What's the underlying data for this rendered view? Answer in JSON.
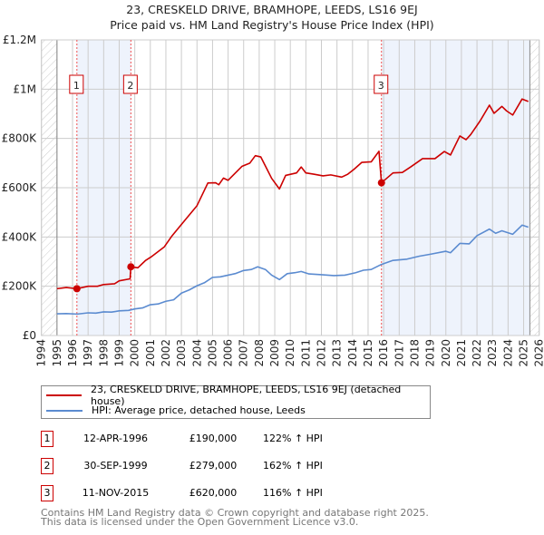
{
  "title": "23, CRESKELD DRIVE, BRAMHOPE, LEEDS, LS16 9EJ",
  "subtitle": "Price paid vs. HM Land Registry's House Price Index (HPI)",
  "colors": {
    "property": "#cc0000",
    "hpi": "#5b8bd0",
    "shade": "#eef3fc",
    "grid": "#cccccc"
  },
  "chart_data": {
    "type": "line",
    "xlim": [
      1994,
      2026
    ],
    "ylim": [
      0,
      1200000
    ],
    "x_ticks": [
      "1994",
      "1995",
      "1996",
      "1997",
      "1998",
      "1999",
      "2000",
      "2001",
      "2002",
      "2003",
      "2004",
      "2005",
      "2006",
      "2007",
      "2008",
      "2009",
      "2010",
      "2011",
      "2012",
      "2013",
      "2014",
      "2015",
      "2016",
      "2017",
      "2018",
      "2019",
      "2020",
      "2021",
      "2022",
      "2023",
      "2024",
      "2025",
      "2026"
    ],
    "y_ticks": [
      {
        "v": 0,
        "label": "£0"
      },
      {
        "v": 200000,
        "label": "£200K"
      },
      {
        "v": 400000,
        "label": "£400K"
      },
      {
        "v": 600000,
        "label": "£600K"
      },
      {
        "v": 800000,
        "label": "£800K"
      },
      {
        "v": 1000000,
        "label": "£1M"
      },
      {
        "v": 1200000,
        "label": "£1.2M"
      }
    ],
    "grid": true,
    "data_end": 2025.4,
    "series": [
      {
        "name": "23, CRESKELD DRIVE, BRAMHOPE, LEEDS, LS16 9EJ (detached house)",
        "color": "#cc0000",
        "points": [
          [
            1995,
            190000
          ],
          [
            1995.6,
            195000
          ],
          [
            1996.28,
            190000
          ],
          [
            1997,
            200000
          ],
          [
            1997.6,
            200000
          ],
          [
            1998,
            207000
          ],
          [
            1998.7,
            210000
          ],
          [
            1999,
            222000
          ],
          [
            1999.7,
            230000
          ],
          [
            1999.75,
            279000
          ],
          [
            2000.2,
            275000
          ],
          [
            2000.7,
            305000
          ],
          [
            2001.05,
            319000
          ],
          [
            2001.9,
            360000
          ],
          [
            2002.4,
            405000
          ],
          [
            2003.2,
            466000
          ],
          [
            2004,
            527000
          ],
          [
            2004.7,
            619000
          ],
          [
            2005.2,
            620000
          ],
          [
            2005.4,
            612000
          ],
          [
            2005.7,
            639000
          ],
          [
            2006,
            630000
          ],
          [
            2006.9,
            687000
          ],
          [
            2007.4,
            700000
          ],
          [
            2007.75,
            730000
          ],
          [
            2008.1,
            725000
          ],
          [
            2008.4,
            688000
          ],
          [
            2008.8,
            638000
          ],
          [
            2009.3,
            595000
          ],
          [
            2009.7,
            650000
          ],
          [
            2010.4,
            660000
          ],
          [
            2010.7,
            684000
          ],
          [
            2011,
            660000
          ],
          [
            2011.5,
            655000
          ],
          [
            2012.1,
            648000
          ],
          [
            2012.6,
            652000
          ],
          [
            2013.3,
            643000
          ],
          [
            2013.7,
            655000
          ],
          [
            2014.1,
            675000
          ],
          [
            2014.6,
            703000
          ],
          [
            2015.2,
            705000
          ],
          [
            2015.7,
            748000
          ],
          [
            2015.86,
            620000
          ],
          [
            2016.6,
            660000
          ],
          [
            2017.2,
            662000
          ],
          [
            2017.75,
            685000
          ],
          [
            2018.5,
            718000
          ],
          [
            2019.3,
            718000
          ],
          [
            2019.9,
            747000
          ],
          [
            2020.3,
            733000
          ],
          [
            2020.9,
            810000
          ],
          [
            2021.3,
            795000
          ],
          [
            2021.6,
            816000
          ],
          [
            2022.2,
            871000
          ],
          [
            2022.8,
            935000
          ],
          [
            2023.1,
            902000
          ],
          [
            2023.6,
            930000
          ],
          [
            2023.9,
            912000
          ],
          [
            2024.3,
            895000
          ],
          [
            2024.9,
            960000
          ],
          [
            2025.3,
            950000
          ]
        ]
      },
      {
        "name": "HPI: Average price, detached house, Leeds",
        "color": "#5b8bd0",
        "points": [
          [
            1995,
            88000
          ],
          [
            1995.6,
            89000
          ],
          [
            1996.3,
            87000
          ],
          [
            1997,
            92000
          ],
          [
            1997.5,
            91000
          ],
          [
            1998,
            96000
          ],
          [
            1998.5,
            95000
          ],
          [
            1999,
            100000
          ],
          [
            1999.6,
            102000
          ],
          [
            2000,
            108000
          ],
          [
            2000.5,
            112000
          ],
          [
            2001,
            125000
          ],
          [
            2001.5,
            128000
          ],
          [
            2002,
            139000
          ],
          [
            2002.5,
            145000
          ],
          [
            2003,
            172000
          ],
          [
            2003.5,
            185000
          ],
          [
            2004,
            202000
          ],
          [
            2004.5,
            215000
          ],
          [
            2005,
            236000
          ],
          [
            2005.5,
            238000
          ],
          [
            2006,
            245000
          ],
          [
            2006.5,
            252000
          ],
          [
            2007,
            264000
          ],
          [
            2007.5,
            268000
          ],
          [
            2007.9,
            279000
          ],
          [
            2008.4,
            268000
          ],
          [
            2008.8,
            245000
          ],
          [
            2009.3,
            227000
          ],
          [
            2009.8,
            251000
          ],
          [
            2010.3,
            255000
          ],
          [
            2010.7,
            260000
          ],
          [
            2011.2,
            250000
          ],
          [
            2012,
            247000
          ],
          [
            2012.8,
            243000
          ],
          [
            2013.5,
            245000
          ],
          [
            2014.2,
            255000
          ],
          [
            2014.7,
            265000
          ],
          [
            2015.2,
            268000
          ],
          [
            2015.8,
            287000
          ],
          [
            2016.6,
            305000
          ],
          [
            2017.5,
            310000
          ],
          [
            2018.3,
            322000
          ],
          [
            2019,
            330000
          ],
          [
            2020,
            342000
          ],
          [
            2020.3,
            336000
          ],
          [
            2020.9,
            374000
          ],
          [
            2021.5,
            372000
          ],
          [
            2022,
            405000
          ],
          [
            2022.8,
            432000
          ],
          [
            2023.2,
            415000
          ],
          [
            2023.6,
            425000
          ],
          [
            2024.3,
            411000
          ],
          [
            2024.9,
            448000
          ],
          [
            2025.3,
            440000
          ]
        ]
      }
    ],
    "sales": [
      {
        "n": "1",
        "x": 1996.28,
        "price": 190000
      },
      {
        "n": "2",
        "x": 1999.75,
        "price": 279000
      },
      {
        "n": "3",
        "x": 2015.86,
        "price": 620000
      }
    ]
  },
  "legend": [
    {
      "label": "23, CRESKELD DRIVE, BRAMHOPE, LEEDS, LS16 9EJ (detached house)"
    },
    {
      "label": "HPI: Average price, detached house, Leeds"
    }
  ],
  "transactions": [
    {
      "n": "1",
      "date": "12-APR-1996",
      "price": "£190,000",
      "hpi": "122% ↑ HPI"
    },
    {
      "n": "2",
      "date": "30-SEP-1999",
      "price": "£279,000",
      "hpi": "162% ↑ HPI"
    },
    {
      "n": "3",
      "date": "11-NOV-2015",
      "price": "£620,000",
      "hpi": "116% ↑ HPI"
    }
  ],
  "footer": [
    "Contains HM Land Registry data © Crown copyright and database right 2025.",
    "This data is licensed under the Open Government Licence v3.0."
  ]
}
